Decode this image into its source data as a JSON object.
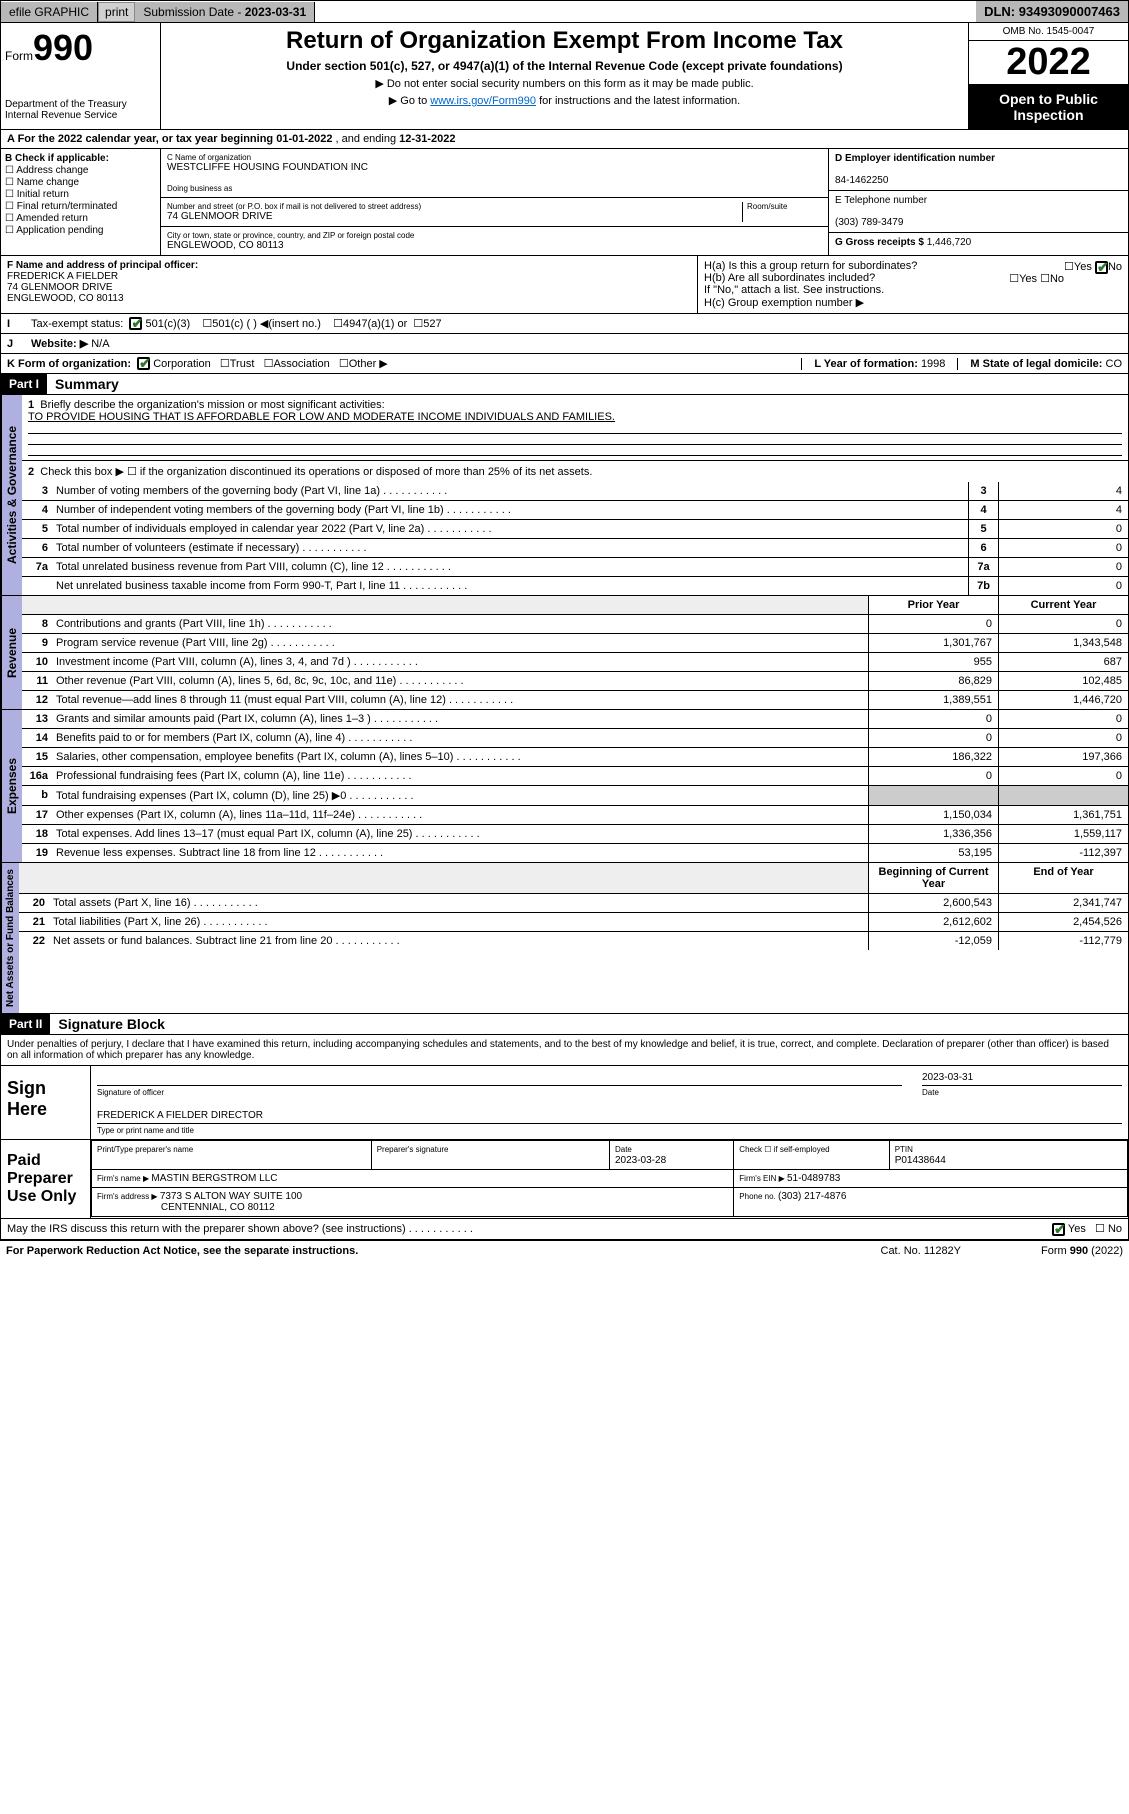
{
  "topbar": {
    "efile": "efile GRAPHIC",
    "print": "print",
    "sub_label": "Submission Date - ",
    "sub_date": "2023-03-31",
    "dln_label": "DLN: ",
    "dln": "93493090007463"
  },
  "header": {
    "form_prefix": "Form",
    "form_no": "990",
    "dept": "Department of the Treasury",
    "irs": "Internal Revenue Service",
    "title": "Return of Organization Exempt From Income Tax",
    "sub": "Under section 501(c), 527, or 4947(a)(1) of the Internal Revenue Code (except private foundations)",
    "note1": "▶ Do not enter social security numbers on this form as it may be made public.",
    "note2_pre": "▶ Go to ",
    "note2_link": "www.irs.gov/Form990",
    "note2_post": " for instructions and the latest information.",
    "omb": "OMB No. 1545-0047",
    "year": "2022",
    "openpub": "Open to Public Inspection"
  },
  "rowA": {
    "text_pre": "A For the 2022 calendar year, or tax year beginning ",
    "begin": "01-01-2022",
    "mid": " , and ending ",
    "end": "12-31-2022"
  },
  "B": {
    "heading": "B Check if applicable:",
    "opts": [
      "Address change",
      "Name change",
      "Initial return",
      "Final return/terminated",
      "Amended return",
      "Application pending"
    ]
  },
  "C": {
    "name_lbl": "C Name of organization",
    "name": "WESTCLIFFE HOUSING FOUNDATION INC",
    "dba_lbl": "Doing business as",
    "dba": "",
    "addr_lbl": "Number and street (or P.O. box if mail is not delivered to street address)",
    "room_lbl": "Room/suite",
    "addr": "74 GLENMOOR DRIVE",
    "city_lbl": "City or town, state or province, country, and ZIP or foreign postal code",
    "city": "ENGLEWOOD, CO  80113"
  },
  "D": {
    "lbl": "D Employer identification number",
    "val": "84-1462250"
  },
  "E": {
    "lbl": "E Telephone number",
    "val": "(303) 789-3479"
  },
  "G": {
    "lbl": "G Gross receipts $ ",
    "val": "1,446,720"
  },
  "F": {
    "lbl": "F Name and address of principal officer:",
    "name": "FREDERICK A FIELDER",
    "addr1": "74 GLENMOOR DRIVE",
    "addr2": "ENGLEWOOD, CO  80113"
  },
  "H": {
    "a_lbl": "H(a)  Is this a group return for subordinates?",
    "a_yes": "Yes",
    "a_no": "No",
    "b_lbl": "H(b)  Are all subordinates included?",
    "b_yes": "Yes",
    "b_no": "No",
    "b_note": "If \"No,\" attach a list. See instructions.",
    "c_lbl": "H(c)  Group exemption number ▶"
  },
  "I": {
    "lbl": "Tax-exempt status:",
    "o1": "501(c)(3)",
    "o2": "501(c) (  ) ◀(insert no.)",
    "o3": "4947(a)(1) or",
    "o4": "527"
  },
  "J": {
    "lbl": "Website: ▶",
    "val": "N/A"
  },
  "K": {
    "lbl": "K Form of organization:",
    "o1": "Corporation",
    "o2": "Trust",
    "o3": "Association",
    "o4": "Other ▶"
  },
  "L": {
    "lbl": "L Year of formation: ",
    "val": "1998"
  },
  "M": {
    "lbl": "M State of legal domicile: ",
    "val": "CO"
  },
  "part1": {
    "num": "Part I",
    "title": "Summary"
  },
  "summary": {
    "q1_lbl": "Briefly describe the organization's mission or most significant activities:",
    "q1_val": "TO PROVIDE HOUSING THAT IS AFFORDABLE FOR LOW AND MODERATE INCOME INDIVIDUALS AND FAMILIES.",
    "q2": "Check this box ▶ ☐  if the organization discontinued its operations or disposed of more than 25% of its net assets.",
    "lines_gov": [
      {
        "n": "3",
        "t": "Number of voting members of the governing body (Part VI, line 1a)",
        "b": "3",
        "v": "4"
      },
      {
        "n": "4",
        "t": "Number of independent voting members of the governing body (Part VI, line 1b)",
        "b": "4",
        "v": "4"
      },
      {
        "n": "5",
        "t": "Total number of individuals employed in calendar year 2022 (Part V, line 2a)",
        "b": "5",
        "v": "0"
      },
      {
        "n": "6",
        "t": "Total number of volunteers (estimate if necessary)",
        "b": "6",
        "v": "0"
      },
      {
        "n": "7a",
        "t": "Total unrelated business revenue from Part VIII, column (C), line 12",
        "b": "7a",
        "v": "0"
      },
      {
        "n": "",
        "t": "Net unrelated business taxable income from Form 990-T, Part I, line 11",
        "b": "7b",
        "v": "0"
      }
    ],
    "col_prior": "Prior Year",
    "col_curr": "Current Year",
    "revenue": [
      {
        "n": "8",
        "t": "Contributions and grants (Part VIII, line 1h)",
        "p": "0",
        "c": "0"
      },
      {
        "n": "9",
        "t": "Program service revenue (Part VIII, line 2g)",
        "p": "1,301,767",
        "c": "1,343,548"
      },
      {
        "n": "10",
        "t": "Investment income (Part VIII, column (A), lines 3, 4, and 7d )",
        "p": "955",
        "c": "687"
      },
      {
        "n": "11",
        "t": "Other revenue (Part VIII, column (A), lines 5, 6d, 8c, 9c, 10c, and 11e)",
        "p": "86,829",
        "c": "102,485"
      },
      {
        "n": "12",
        "t": "Total revenue—add lines 8 through 11 (must equal Part VIII, column (A), line 12)",
        "p": "1,389,551",
        "c": "1,446,720"
      }
    ],
    "expenses": [
      {
        "n": "13",
        "t": "Grants and similar amounts paid (Part IX, column (A), lines 1–3 )",
        "p": "0",
        "c": "0"
      },
      {
        "n": "14",
        "t": "Benefits paid to or for members (Part IX, column (A), line 4)",
        "p": "0",
        "c": "0"
      },
      {
        "n": "15",
        "t": "Salaries, other compensation, employee benefits (Part IX, column (A), lines 5–10)",
        "p": "186,322",
        "c": "197,366"
      },
      {
        "n": "16a",
        "t": "Professional fundraising fees (Part IX, column (A), line 11e)",
        "p": "0",
        "c": "0"
      },
      {
        "n": "b",
        "t": "Total fundraising expenses (Part IX, column (D), line 25) ▶0",
        "p": "",
        "c": ""
      },
      {
        "n": "17",
        "t": "Other expenses (Part IX, column (A), lines 11a–11d, 11f–24e)",
        "p": "1,150,034",
        "c": "1,361,751"
      },
      {
        "n": "18",
        "t": "Total expenses. Add lines 13–17 (must equal Part IX, column (A), line 25)",
        "p": "1,336,356",
        "c": "1,559,117"
      },
      {
        "n": "19",
        "t": "Revenue less expenses. Subtract line 18 from line 12",
        "p": "53,195",
        "c": "-112,397"
      }
    ],
    "col_begin": "Beginning of Current Year",
    "col_end": "End of Year",
    "netassets": [
      {
        "n": "20",
        "t": "Total assets (Part X, line 16)",
        "p": "2,600,543",
        "c": "2,341,747"
      },
      {
        "n": "21",
        "t": "Total liabilities (Part X, line 26)",
        "p": "2,612,602",
        "c": "2,454,526"
      },
      {
        "n": "22",
        "t": "Net assets or fund balances. Subtract line 21 from line 20",
        "p": "-12,059",
        "c": "-112,779"
      }
    ]
  },
  "tabs": {
    "gov": "Activities & Governance",
    "rev": "Revenue",
    "exp": "Expenses",
    "net": "Net Assets or Fund Balances"
  },
  "part2": {
    "num": "Part II",
    "title": "Signature Block"
  },
  "sig": {
    "decl": "Under penalties of perjury, I declare that I have examined this return, including accompanying schedules and statements, and to the best of my knowledge and belief, it is true, correct, and complete. Declaration of preparer (other than officer) is based on all information of which preparer has any knowledge.",
    "sign_here": "Sign Here",
    "officer_sig": "Signature of officer",
    "date_lbl": "Date",
    "date": "2023-03-31",
    "officer_name": "FREDERICK A FIELDER  DIRECTOR",
    "officer_title": "Type or print name and title",
    "paid_lbl": "Paid Preparer Use Only",
    "prep_name_lbl": "Print/Type preparer's name",
    "prep_sig_lbl": "Preparer's signature",
    "prep_date_lbl": "Date",
    "prep_date": "2023-03-28",
    "self_lbl": "Check ☐ if self-employed",
    "ptin_lbl": "PTIN",
    "ptin": "P01438644",
    "firm_name_lbl": "Firm's name    ▶ ",
    "firm_name": "MASTIN BERGSTROM LLC",
    "firm_ein_lbl": "Firm's EIN ▶ ",
    "firm_ein": "51-0489783",
    "firm_addr_lbl": "Firm's address ▶ ",
    "firm_addr1": "7373 S ALTON WAY SUITE 100",
    "firm_addr2": "CENTENNIAL, CO  80112",
    "phone_lbl": "Phone no. ",
    "phone": "(303) 217-4876",
    "discuss": "May the IRS discuss this return with the preparer shown above? (see instructions)",
    "yes": "Yes",
    "no": "No"
  },
  "footer": {
    "pra": "For Paperwork Reduction Act Notice, see the separate instructions.",
    "cat": "Cat. No. 11282Y",
    "form": "Form 990 (2022)"
  }
}
